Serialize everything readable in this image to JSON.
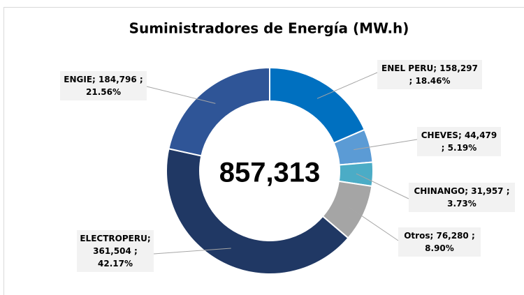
{
  "chart_data": {
    "type": "donut",
    "title": "Suministradores de Energía (MW.h)",
    "categories": [
      "ENEL PERU",
      "CHEVES",
      "CHINANGO",
      "Otros",
      "ELECTROPERU",
      "ENGIE"
    ],
    "values": [
      158297,
      44479,
      31957,
      76280,
      361504,
      184796
    ],
    "value_labels": [
      "158,297",
      "44,479",
      "31,957",
      "76,280",
      "361,504",
      "184,796"
    ],
    "percents": [
      18.46,
      5.19,
      3.73,
      8.9,
      42.17,
      21.56
    ],
    "percent_labels": [
      "18.46%",
      "5.19%",
      "3.73%",
      "8.90%",
      "42.17%",
      "21.56%"
    ],
    "separator": ";",
    "colors": [
      "#0070c0",
      "#5b9bd5",
      "#4bacc6",
      "#a5a5a5",
      "#203864",
      "#2f5597"
    ],
    "total": {
      "value": 857313,
      "label": "857,313"
    }
  }
}
